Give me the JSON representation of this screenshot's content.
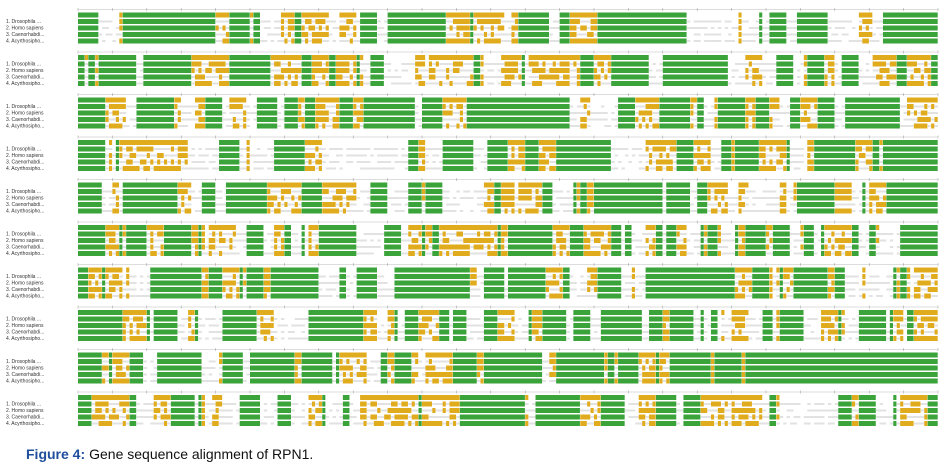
{
  "figure": {
    "sequence_labels": [
      "1. Drosophila ...",
      "2. Homo sapiens",
      "3. Caenorhabdi...",
      "4. Acyrthosipho..."
    ],
    "caption": {
      "label": "Figure 4:",
      "text": "Gene sequence alignment of RPN1."
    }
  }
}
